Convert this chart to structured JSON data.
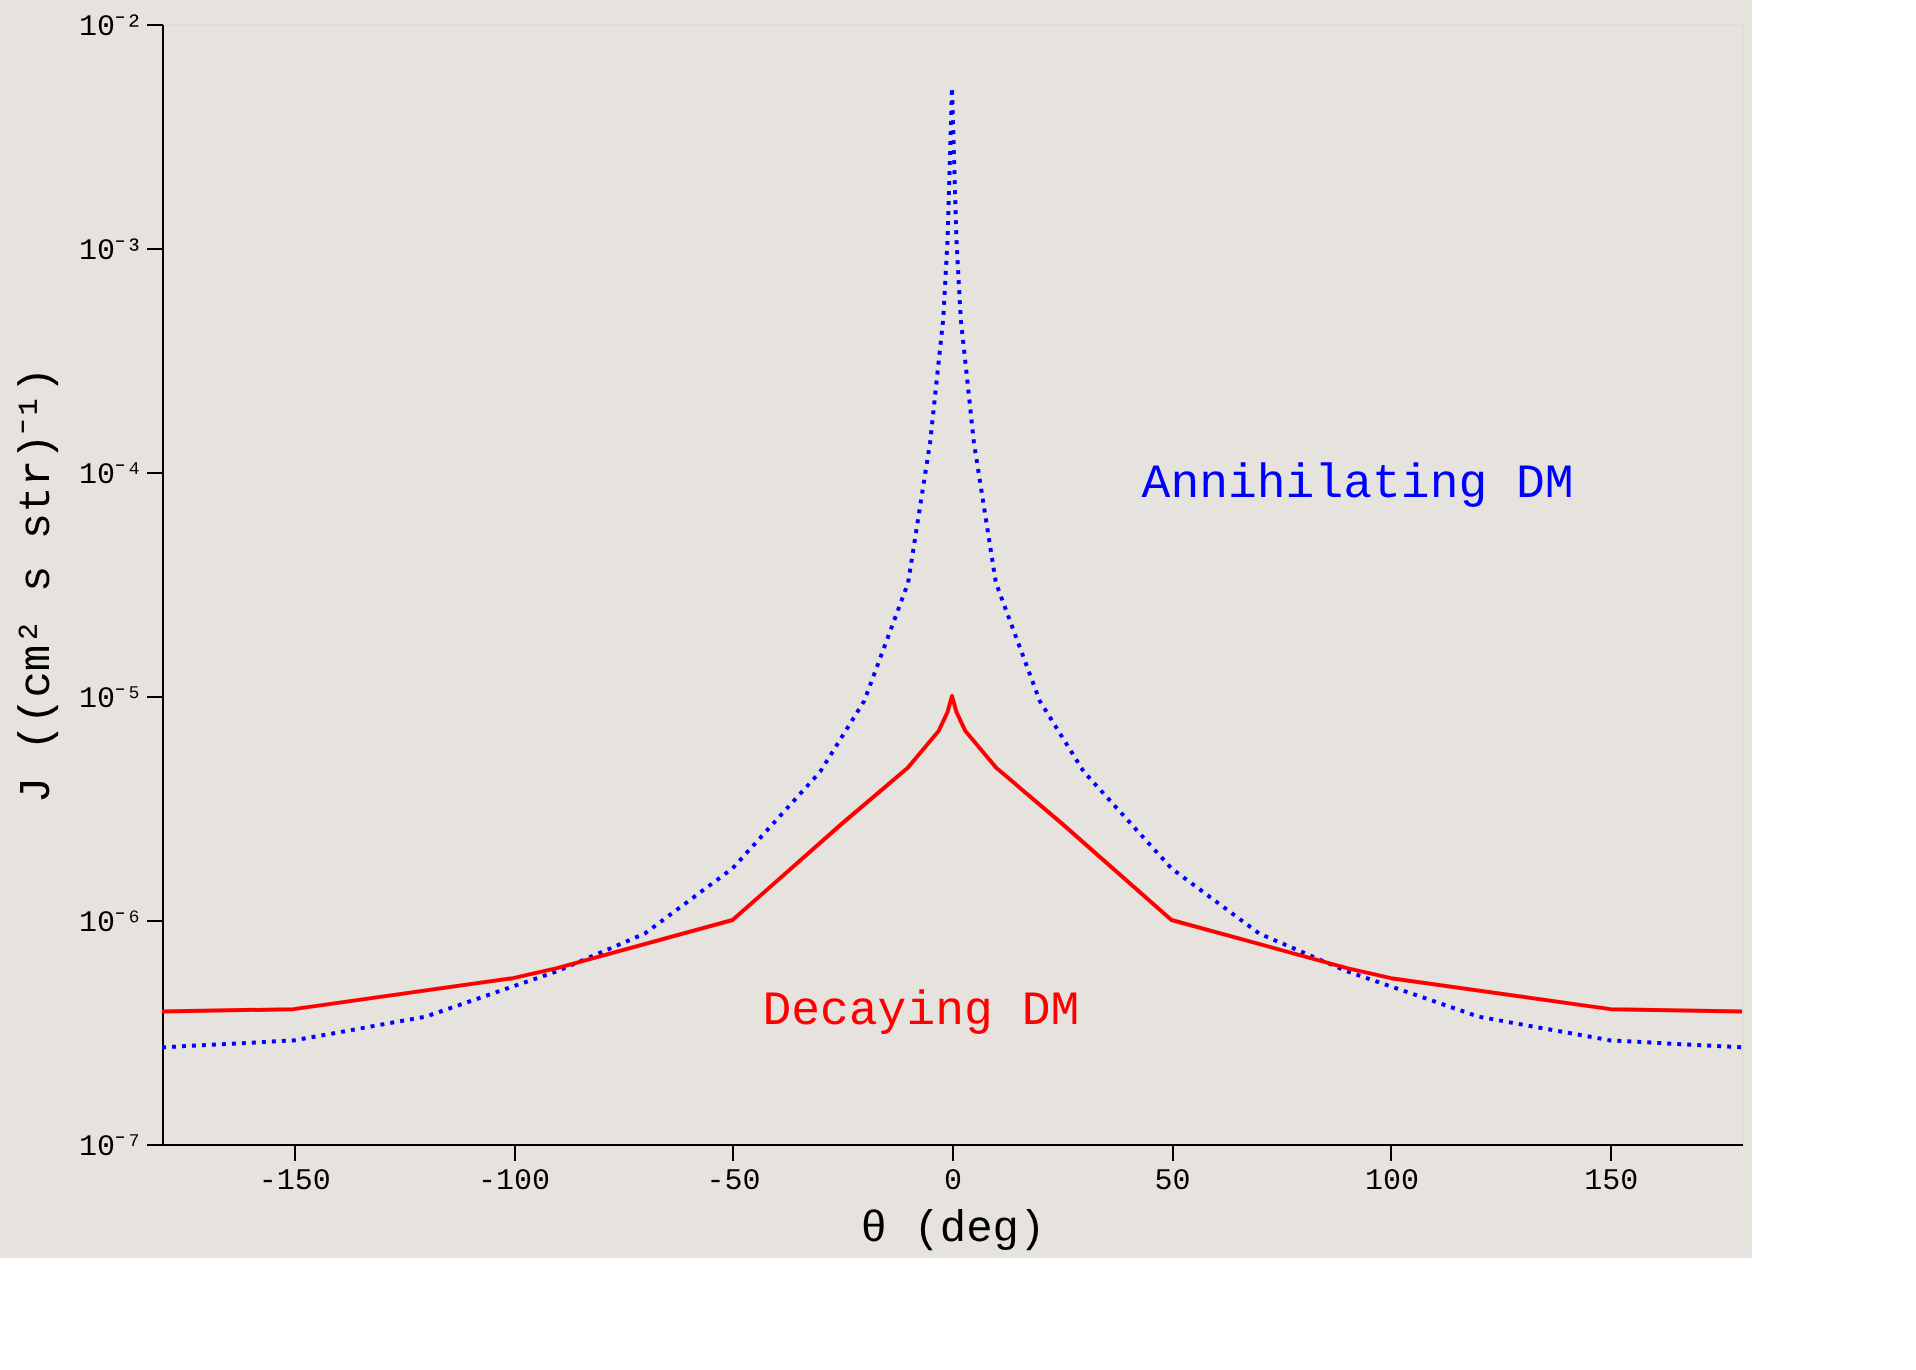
{
  "chart_data": {
    "type": "line",
    "xlabel": "θ (deg)",
    "ylabel": "J ((cm² s str)⁻¹)",
    "log": "y",
    "xlim": [
      -180,
      180
    ],
    "xticks": [
      -150,
      -100,
      -50,
      0,
      50,
      100,
      150
    ],
    "ylim": [
      1e-07,
      0.01
    ],
    "yticks": [
      {
        "value": 1e-07,
        "label": "10⁻⁷"
      },
      {
        "value": 1e-06,
        "label": "10⁻⁶"
      },
      {
        "value": 1e-05,
        "label": "10⁻⁵"
      },
      {
        "value": 0.0001,
        "label": "10⁻⁴"
      },
      {
        "value": 0.001,
        "label": "10⁻³"
      },
      {
        "value": 0.01,
        "label": "10⁻²"
      }
    ],
    "grid": false,
    "legend": false,
    "series": [
      {
        "name": "Annihilating DM",
        "color": "#0000ff",
        "line_style": "dotted",
        "x": [
          -180,
          -150,
          -120,
          -90,
          -70,
          -50,
          -30,
          -20,
          -10,
          -5,
          -2,
          -1,
          0,
          1,
          2,
          5,
          10,
          20,
          30,
          50,
          70,
          90,
          120,
          150,
          180
        ],
        "values": [
          2.7e-07,
          2.9e-07,
          3.7e-07,
          5.9e-07,
          8.7e-07,
          1.7e-06,
          4.6e-06,
          9.5e-06,
          3.2e-05,
          0.000135,
          0.00048,
          0.0011,
          0.0052,
          0.0011,
          0.00048,
          0.000135,
          3.2e-05,
          9.5e-06,
          4.6e-06,
          1.7e-06,
          8.7e-07,
          5.9e-07,
          3.7e-07,
          2.9e-07,
          2.7e-07
        ]
      },
      {
        "name": "Decaying DM",
        "color": "#ff0000",
        "line_style": "solid",
        "x": [
          -180,
          -150,
          -100,
          -90,
          -50,
          -25,
          -10,
          -3,
          -1,
          0,
          1,
          3,
          10,
          25,
          50,
          90,
          100,
          150,
          180
        ],
        "values": [
          3.9e-07,
          4e-07,
          5.5e-07,
          6.1e-07,
          1e-06,
          2.7e-06,
          4.8e-06,
          7e-06,
          8.5e-06,
          1e-05,
          8.5e-06,
          7e-06,
          4.8e-06,
          2.7e-06,
          1e-06,
          6.1e-07,
          5.5e-07,
          4e-07,
          3.9e-07
        ]
      }
    ]
  }
}
